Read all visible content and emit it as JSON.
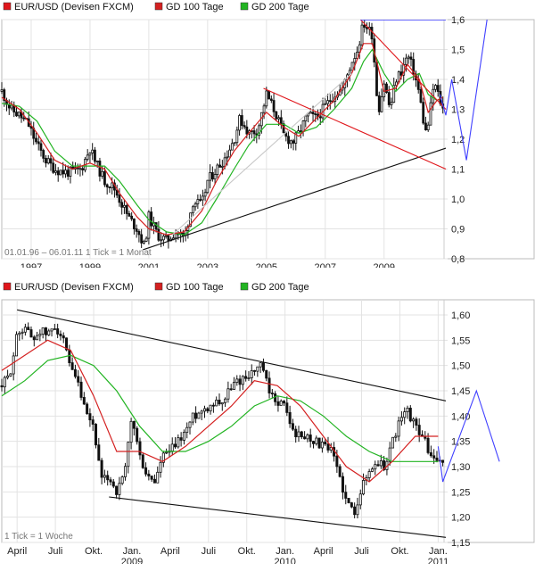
{
  "chart_data": [
    {
      "type": "candlestick",
      "legend": [
        {
          "label": "EUR/USD (Devisen FXCM)",
          "color": "#e0161b"
        },
        {
          "label": "GD 100 Tage",
          "color": "#d42020"
        },
        {
          "label": "GD 200 Tage",
          "color": "#22b422"
        }
      ],
      "footer": {
        "date_range": "01.01.96 – 06.01.11",
        "tick": "1 Tick = 1 Monat"
      },
      "x_range": [
        1996.0,
        2011.1
      ],
      "ylim": [
        0.8,
        1.6
      ],
      "y_ticks": [
        "0,8",
        "0,9",
        "1,0",
        "1,1",
        "1,2",
        "1,3",
        "1,4",
        "1,5",
        "1,6"
      ],
      "x_ticks": [
        {
          "label": "1997",
          "x": 1997
        },
        {
          "label": "1999",
          "x": 1999
        },
        {
          "label": "2001",
          "x": 2001
        },
        {
          "label": "2003",
          "x": 2003
        },
        {
          "label": "2005",
          "x": 2005
        },
        {
          "label": "2007",
          "x": 2007
        },
        {
          "label": "2009",
          "x": 2009
        }
      ],
      "price": [
        [
          1996.0,
          1.36
        ],
        [
          1996.3,
          1.3
        ],
        [
          1996.6,
          1.28
        ],
        [
          1996.9,
          1.25
        ],
        [
          1997.2,
          1.18
        ],
        [
          1997.5,
          1.13
        ],
        [
          1997.8,
          1.1
        ],
        [
          1998.1,
          1.09
        ],
        [
          1998.4,
          1.09
        ],
        [
          1998.7,
          1.1
        ],
        [
          1999.0,
          1.17
        ],
        [
          1999.2,
          1.12
        ],
        [
          1999.5,
          1.06
        ],
        [
          1999.8,
          1.04
        ],
        [
          2000.0,
          1.0
        ],
        [
          2000.3,
          0.94
        ],
        [
          2000.6,
          0.9
        ],
        [
          2000.85,
          0.84
        ],
        [
          2001.0,
          0.94
        ],
        [
          2001.3,
          0.88
        ],
        [
          2001.6,
          0.86
        ],
        [
          2001.9,
          0.89
        ],
        [
          2002.2,
          0.87
        ],
        [
          2002.5,
          0.99
        ],
        [
          2002.8,
          0.98
        ],
        [
          2003.0,
          1.06
        ],
        [
          2003.3,
          1.1
        ],
        [
          2003.6,
          1.14
        ],
        [
          2003.9,
          1.2
        ],
        [
          2004.1,
          1.27
        ],
        [
          2004.4,
          1.22
        ],
        [
          2004.7,
          1.23
        ],
        [
          2005.0,
          1.35
        ],
        [
          2005.3,
          1.29
        ],
        [
          2005.6,
          1.21
        ],
        [
          2005.9,
          1.19
        ],
        [
          2006.1,
          1.22
        ],
        [
          2006.4,
          1.28
        ],
        [
          2006.7,
          1.27
        ],
        [
          2007.0,
          1.31
        ],
        [
          2007.3,
          1.35
        ],
        [
          2007.6,
          1.37
        ],
        [
          2007.9,
          1.46
        ],
        [
          2008.1,
          1.5
        ],
        [
          2008.3,
          1.59
        ],
        [
          2008.6,
          1.55
        ],
        [
          2008.8,
          1.29
        ],
        [
          2009.0,
          1.39
        ],
        [
          2009.2,
          1.3
        ],
        [
          2009.4,
          1.4
        ],
        [
          2009.6,
          1.43
        ],
        [
          2009.8,
          1.48
        ],
        [
          2010.0,
          1.43
        ],
        [
          2010.2,
          1.35
        ],
        [
          2010.4,
          1.22
        ],
        [
          2010.5,
          1.25
        ],
        [
          2010.7,
          1.39
        ],
        [
          2010.8,
          1.36
        ],
        [
          2011.0,
          1.3
        ]
      ],
      "ma100": [
        [
          1996.0,
          1.34
        ],
        [
          1996.6,
          1.3
        ],
        [
          1997.2,
          1.22
        ],
        [
          1997.8,
          1.13
        ],
        [
          1998.4,
          1.1
        ],
        [
          1999.0,
          1.12
        ],
        [
          1999.5,
          1.1
        ],
        [
          2000.0,
          1.02
        ],
        [
          2000.6,
          0.94
        ],
        [
          2001.0,
          0.9
        ],
        [
          2001.6,
          0.88
        ],
        [
          2002.2,
          0.89
        ],
        [
          2002.8,
          0.96
        ],
        [
          2003.3,
          1.06
        ],
        [
          2003.9,
          1.16
        ],
        [
          2004.4,
          1.22
        ],
        [
          2005.0,
          1.29
        ],
        [
          2005.6,
          1.24
        ],
        [
          2006.1,
          1.21
        ],
        [
          2006.7,
          1.27
        ],
        [
          2007.3,
          1.33
        ],
        [
          2007.9,
          1.42
        ],
        [
          2008.3,
          1.52
        ],
        [
          2008.6,
          1.52
        ],
        [
          2009.0,
          1.36
        ],
        [
          2009.4,
          1.37
        ],
        [
          2009.8,
          1.45
        ],
        [
          2010.2,
          1.4
        ],
        [
          2010.5,
          1.29
        ],
        [
          2010.8,
          1.33
        ],
        [
          2011.0,
          1.34
        ]
      ],
      "ma200": [
        [
          1996.0,
          1.32
        ],
        [
          1996.6,
          1.31
        ],
        [
          1997.2,
          1.26
        ],
        [
          1997.8,
          1.16
        ],
        [
          1998.4,
          1.11
        ],
        [
          1999.0,
          1.11
        ],
        [
          1999.5,
          1.11
        ],
        [
          2000.0,
          1.06
        ],
        [
          2000.6,
          0.98
        ],
        [
          2001.0,
          0.93
        ],
        [
          2001.6,
          0.89
        ],
        [
          2002.2,
          0.88
        ],
        [
          2002.8,
          0.92
        ],
        [
          2003.3,
          1.0
        ],
        [
          2003.9,
          1.1
        ],
        [
          2004.4,
          1.18
        ],
        [
          2005.0,
          1.25
        ],
        [
          2005.6,
          1.25
        ],
        [
          2006.1,
          1.22
        ],
        [
          2006.7,
          1.24
        ],
        [
          2007.3,
          1.3
        ],
        [
          2007.9,
          1.37
        ],
        [
          2008.3,
          1.46
        ],
        [
          2008.6,
          1.5
        ],
        [
          2009.0,
          1.42
        ],
        [
          2009.4,
          1.36
        ],
        [
          2009.8,
          1.4
        ],
        [
          2010.2,
          1.42
        ],
        [
          2010.5,
          1.35
        ],
        [
          2010.8,
          1.33
        ],
        [
          2011.0,
          1.34
        ]
      ],
      "trendlines": [
        {
          "color": "#111111",
          "from": [
            2000.8,
            0.83
          ],
          "to": [
            2011.1,
            1.17
          ]
        },
        {
          "color": "#e0161b",
          "from": [
            2004.9,
            1.37
          ],
          "to": [
            2011.1,
            1.1
          ]
        },
        {
          "color": "#e0161b",
          "from": [
            2008.2,
            1.6
          ],
          "to": [
            2011.1,
            1.3
          ]
        },
        {
          "color": "#c8c8c8",
          "from": [
            2001.8,
            0.88
          ],
          "to": [
            2007.9,
            1.42
          ]
        },
        {
          "color": "#3a3aff",
          "from": [
            2008.2,
            1.6
          ],
          "to": [
            2011.1,
            1.6
          ]
        }
      ],
      "projection": [
        [
          2010.9,
          1.35
        ],
        [
          2011.1,
          1.28
        ],
        [
          2011.3,
          1.4
        ],
        [
          2011.8,
          1.13
        ],
        [
          2012.5,
          1.6
        ]
      ]
    },
    {
      "type": "candlestick",
      "legend": [
        {
          "label": "EUR/USD (Devisen FXCM)",
          "color": "#e0161b"
        },
        {
          "label": "GD 100 Tage",
          "color": "#d42020"
        },
        {
          "label": "GD 200 Tage",
          "color": "#22b422"
        }
      ],
      "footer": {
        "tick": "1 Tick = 1 Woche"
      },
      "x_range": [
        2008.15,
        2011.05
      ],
      "ylim": [
        1.15,
        1.63
      ],
      "y_ticks": [
        "1,15",
        "1,20",
        "1,25",
        "1,30",
        "1,35",
        "1,40",
        "1,45",
        "1,50",
        "1,55",
        "1,60"
      ],
      "x_ticks": [
        {
          "label": "April",
          "x": 2008.25
        },
        {
          "label": "Juli",
          "x": 2008.5
        },
        {
          "label": "Okt.",
          "x": 2008.75
        },
        {
          "label": "Jan.",
          "sub": "2009",
          "x": 2009.0
        },
        {
          "label": "April",
          "x": 2009.25
        },
        {
          "label": "Juli",
          "x": 2009.5
        },
        {
          "label": "Okt.",
          "x": 2009.75
        },
        {
          "label": "Jan.",
          "sub": "2010",
          "x": 2010.0
        },
        {
          "label": "April",
          "x": 2010.25
        },
        {
          "label": "Juli",
          "x": 2010.5
        },
        {
          "label": "Okt.",
          "x": 2010.75
        },
        {
          "label": "Jan.",
          "sub": "2011",
          "x": 2011.0
        }
      ],
      "price": [
        [
          2008.15,
          1.46
        ],
        [
          2008.2,
          1.48
        ],
        [
          2008.25,
          1.56
        ],
        [
          2008.3,
          1.58
        ],
        [
          2008.35,
          1.55
        ],
        [
          2008.4,
          1.57
        ],
        [
          2008.45,
          1.56
        ],
        [
          2008.5,
          1.58
        ],
        [
          2008.55,
          1.55
        ],
        [
          2008.6,
          1.49
        ],
        [
          2008.65,
          1.46
        ],
        [
          2008.7,
          1.4
        ],
        [
          2008.75,
          1.38
        ],
        [
          2008.8,
          1.27
        ],
        [
          2008.85,
          1.28
        ],
        [
          2008.9,
          1.25
        ],
        [
          2008.95,
          1.28
        ],
        [
          2009.0,
          1.4
        ],
        [
          2009.05,
          1.32
        ],
        [
          2009.1,
          1.28
        ],
        [
          2009.15,
          1.27
        ],
        [
          2009.2,
          1.32
        ],
        [
          2009.25,
          1.33
        ],
        [
          2009.3,
          1.35
        ],
        [
          2009.35,
          1.37
        ],
        [
          2009.4,
          1.4
        ],
        [
          2009.45,
          1.41
        ],
        [
          2009.5,
          1.42
        ],
        [
          2009.55,
          1.43
        ],
        [
          2009.6,
          1.43
        ],
        [
          2009.65,
          1.46
        ],
        [
          2009.7,
          1.47
        ],
        [
          2009.75,
          1.48
        ],
        [
          2009.8,
          1.49
        ],
        [
          2009.85,
          1.5
        ],
        [
          2009.9,
          1.44
        ],
        [
          2009.95,
          1.43
        ],
        [
          2010.0,
          1.42
        ],
        [
          2010.05,
          1.37
        ],
        [
          2010.1,
          1.36
        ],
        [
          2010.15,
          1.36
        ],
        [
          2010.2,
          1.35
        ],
        [
          2010.25,
          1.34
        ],
        [
          2010.3,
          1.33
        ],
        [
          2010.35,
          1.29
        ],
        [
          2010.4,
          1.23
        ],
        [
          2010.45,
          1.21
        ],
        [
          2010.5,
          1.26
        ],
        [
          2010.55,
          1.29
        ],
        [
          2010.6,
          1.31
        ],
        [
          2010.65,
          1.3
        ],
        [
          2010.7,
          1.35
        ],
        [
          2010.75,
          1.39
        ],
        [
          2010.8,
          1.41
        ],
        [
          2010.85,
          1.38
        ],
        [
          2010.9,
          1.36
        ],
        [
          2010.95,
          1.32
        ],
        [
          2011.0,
          1.31
        ],
        [
          2011.03,
          1.3
        ]
      ],
      "ma100": [
        [
          2008.15,
          1.49
        ],
        [
          2008.3,
          1.52
        ],
        [
          2008.45,
          1.55
        ],
        [
          2008.6,
          1.53
        ],
        [
          2008.75,
          1.44
        ],
        [
          2008.9,
          1.33
        ],
        [
          2009.05,
          1.33
        ],
        [
          2009.2,
          1.31
        ],
        [
          2009.35,
          1.34
        ],
        [
          2009.5,
          1.38
        ],
        [
          2009.65,
          1.42
        ],
        [
          2009.8,
          1.47
        ],
        [
          2009.95,
          1.46
        ],
        [
          2010.1,
          1.42
        ],
        [
          2010.25,
          1.36
        ],
        [
          2010.4,
          1.3
        ],
        [
          2010.55,
          1.27
        ],
        [
          2010.7,
          1.31
        ],
        [
          2010.85,
          1.36
        ],
        [
          2011.0,
          1.36
        ]
      ],
      "ma200": [
        [
          2008.15,
          1.44
        ],
        [
          2008.3,
          1.47
        ],
        [
          2008.45,
          1.51
        ],
        [
          2008.6,
          1.52
        ],
        [
          2008.75,
          1.5
        ],
        [
          2008.9,
          1.45
        ],
        [
          2009.05,
          1.38
        ],
        [
          2009.2,
          1.33
        ],
        [
          2009.35,
          1.33
        ],
        [
          2009.5,
          1.35
        ],
        [
          2009.65,
          1.38
        ],
        [
          2009.8,
          1.42
        ],
        [
          2009.95,
          1.44
        ],
        [
          2010.1,
          1.43
        ],
        [
          2010.25,
          1.4
        ],
        [
          2010.4,
          1.36
        ],
        [
          2010.55,
          1.33
        ],
        [
          2010.7,
          1.31
        ],
        [
          2010.85,
          1.31
        ],
        [
          2011.0,
          1.31
        ]
      ],
      "trendlines": [
        {
          "color": "#111111",
          "from": [
            2008.25,
            1.61
          ],
          "to": [
            2011.05,
            1.43
          ]
        },
        {
          "color": "#111111",
          "from": [
            2008.85,
            1.24
          ],
          "to": [
            2011.05,
            1.16
          ]
        }
      ],
      "projection": [
        [
          2011.0,
          1.34
        ],
        [
          2011.03,
          1.27
        ],
        [
          2011.25,
          1.45
        ],
        [
          2011.4,
          1.31
        ]
      ]
    }
  ]
}
